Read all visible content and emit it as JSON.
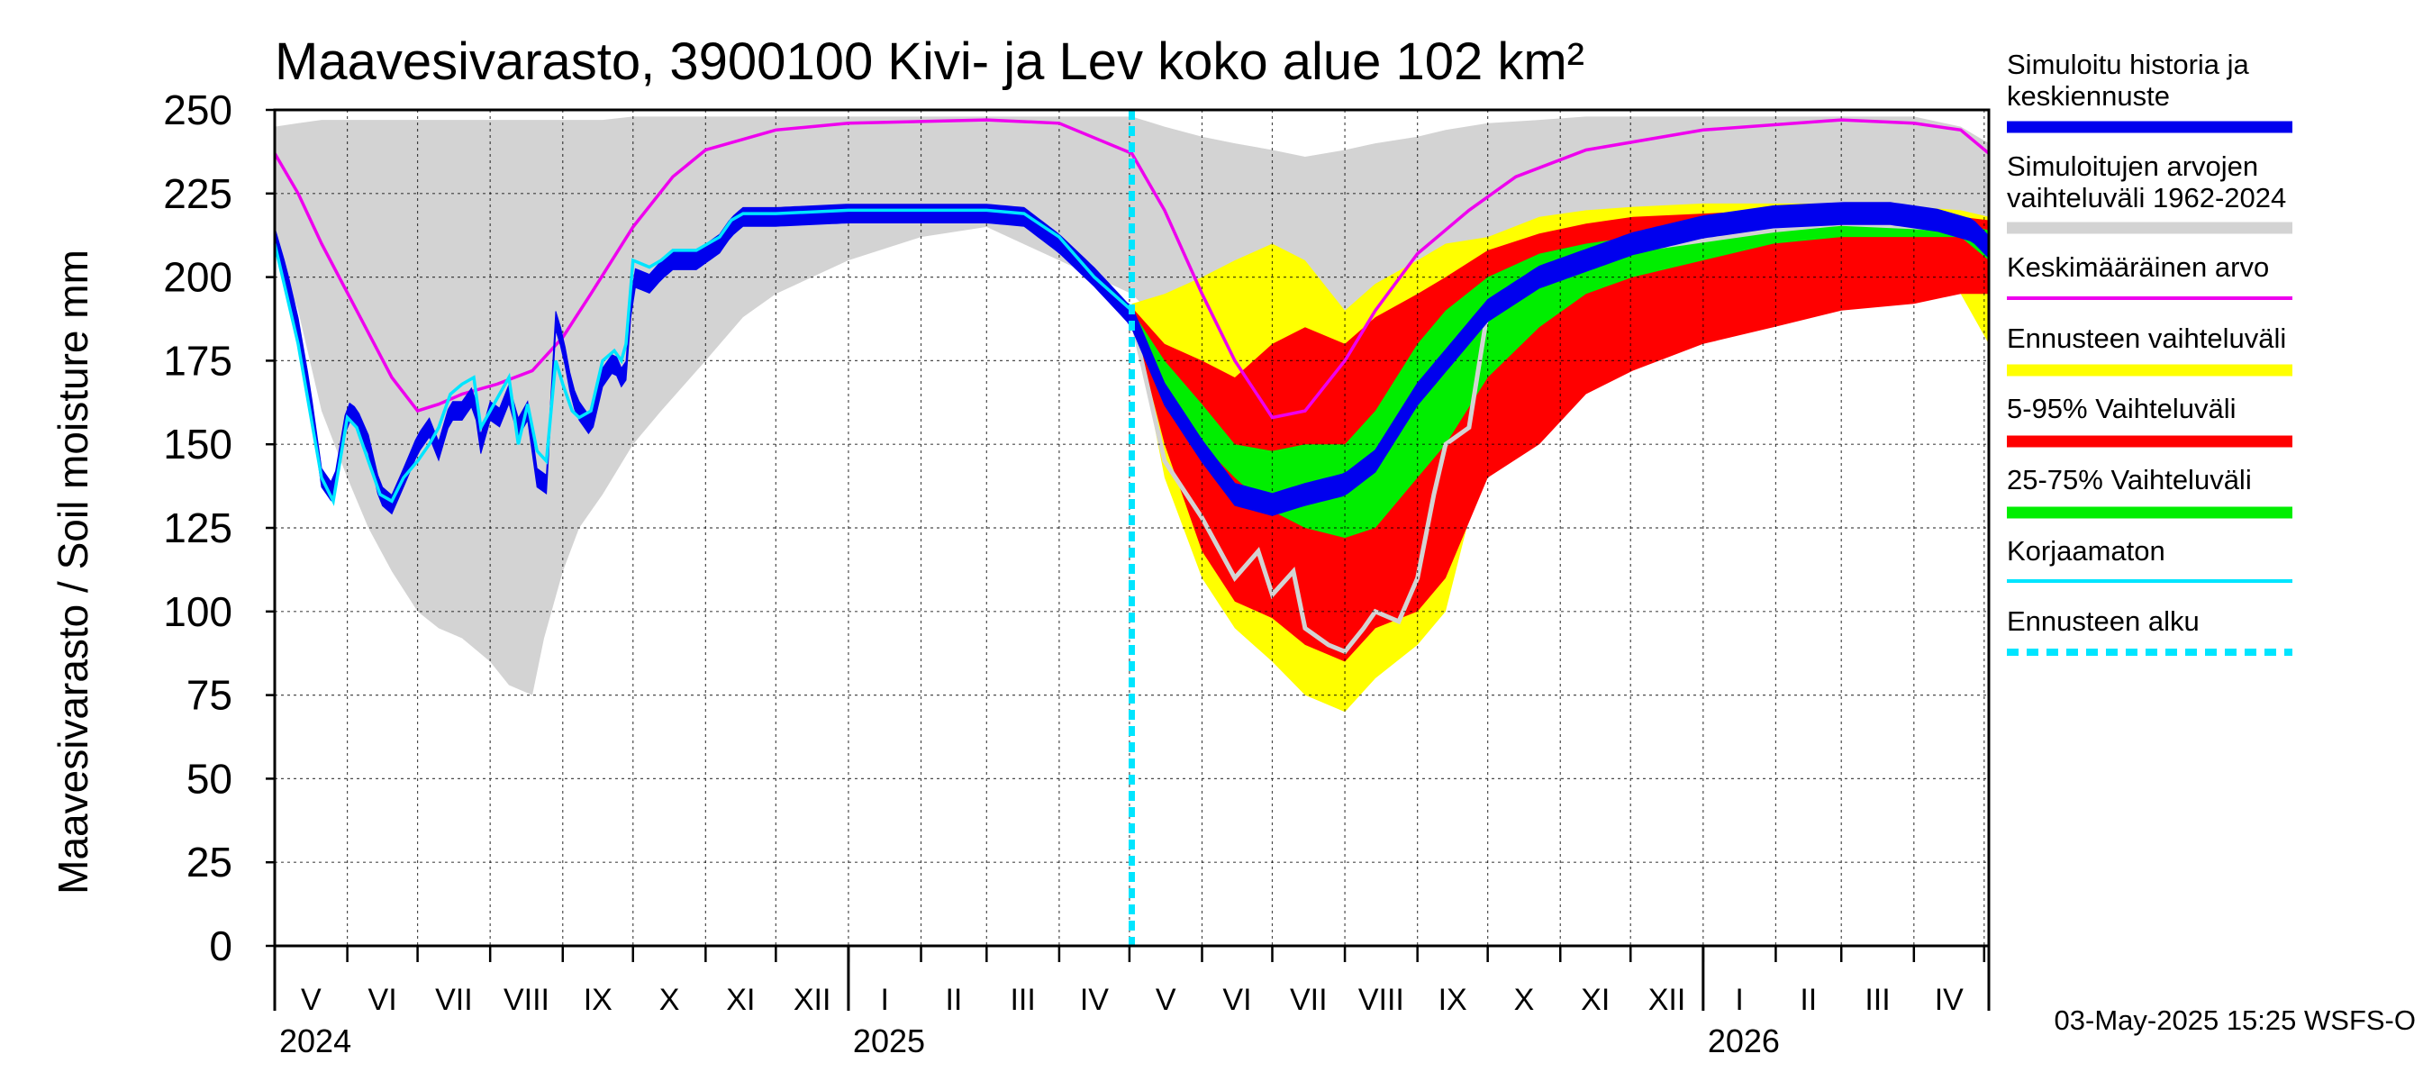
{
  "chart_data": {
    "type": "area",
    "title": "Maavesivarasto, 3900100 Kivi- ja Lev koko alue 102 km²",
    "ylabel": "Maavesivarasto / Soil moisture   mm",
    "xlabel": "",
    "ylim": [
      0,
      250
    ],
    "yticks": [
      0,
      25,
      50,
      75,
      100,
      125,
      150,
      175,
      200,
      225,
      250
    ],
    "xlim_days": [
      0,
      732
    ],
    "forecast_start_day": 366,
    "months": [
      {
        "label": "V",
        "day": 0
      },
      {
        "label": "VI",
        "day": 31
      },
      {
        "label": "VII",
        "day": 61
      },
      {
        "label": "VIII",
        "day": 92
      },
      {
        "label": "IX",
        "day": 123
      },
      {
        "label": "X",
        "day": 153
      },
      {
        "label": "XI",
        "day": 184
      },
      {
        "label": "XII",
        "day": 214
      },
      {
        "label": "I",
        "day": 245
      },
      {
        "label": "II",
        "day": 276
      },
      {
        "label": "III",
        "day": 304
      },
      {
        "label": "IV",
        "day": 335
      },
      {
        "label": "V",
        "day": 365
      },
      {
        "label": "VI",
        "day": 396
      },
      {
        "label": "VII",
        "day": 426
      },
      {
        "label": "VIII",
        "day": 457
      },
      {
        "label": "IX",
        "day": 488
      },
      {
        "label": "X",
        "day": 518
      },
      {
        "label": "XI",
        "day": 549
      },
      {
        "label": "XII",
        "day": 579
      },
      {
        "label": "I",
        "day": 610
      },
      {
        "label": "II",
        "day": 641
      },
      {
        "label": "III",
        "day": 669
      },
      {
        "label": "IV",
        "day": 700
      },
      {
        "label": "",
        "day": 730
      }
    ],
    "year_boundaries": [
      245,
      610
    ],
    "years": [
      {
        "label": "2024",
        "day": 0
      },
      {
        "label": "2025",
        "day": 245
      },
      {
        "label": "2026",
        "day": 610
      }
    ],
    "series": [
      {
        "name": "Simuloitujen arvojen vaihteluväli 1962-2024",
        "kind": "band",
        "x": [
          0,
          10,
          20,
          31,
          40,
          50,
          61,
          70,
          80,
          92,
          100,
          110,
          115,
          123,
          130,
          140,
          153,
          165,
          184,
          200,
          214,
          245,
          276,
          304,
          335,
          366,
          380,
          396,
          410,
          426,
          440,
          457,
          470,
          488,
          500,
          518,
          540,
          560,
          580,
          610,
          640,
          669,
          700,
          720,
          732
        ],
        "low": [
          210,
          190,
          160,
          140,
          125,
          112,
          100,
          95,
          92,
          85,
          78,
          75,
          92,
          112,
          125,
          135,
          150,
          160,
          175,
          188,
          195,
          205,
          212,
          215,
          205,
          195,
          185,
          175,
          165,
          160,
          150,
          162,
          175,
          190,
          200,
          205,
          210,
          212,
          213,
          214,
          215,
          213,
          210,
          200,
          190
        ],
        "high": [
          245,
          246,
          247,
          247,
          247,
          247,
          247,
          247,
          247,
          247,
          247,
          247,
          247,
          247,
          247,
          247,
          248,
          248,
          248,
          248,
          248,
          248,
          248,
          248,
          248,
          248,
          245,
          242,
          240,
          238,
          236,
          238,
          240,
          242,
          244,
          246,
          247,
          248,
          248,
          248,
          248,
          248,
          248,
          245,
          240
        ]
      },
      {
        "name": "Keskimääräinen arvo",
        "kind": "line",
        "color": "#ee00ee",
        "x": [
          0,
          10,
          20,
          35,
          50,
          61,
          70,
          80,
          95,
          110,
          123,
          135,
          153,
          170,
          184,
          214,
          245,
          304,
          335,
          366,
          380,
          396,
          410,
          426,
          440,
          457,
          470,
          488,
          510,
          530,
          560,
          610,
          669,
          700,
          720,
          732
        ],
        "y": [
          237,
          225,
          210,
          190,
          170,
          160,
          162,
          165,
          168,
          172,
          182,
          195,
          215,
          230,
          238,
          244,
          246,
          247,
          246,
          237,
          220,
          195,
          175,
          158,
          160,
          175,
          190,
          207,
          220,
          230,
          238,
          244,
          247,
          246,
          244,
          237
        ]
      },
      {
        "name": "Simuloitu historia ja keskiennuste",
        "kind": "line",
        "color": "#0000ee",
        "x": [
          0,
          5,
          10,
          15,
          20,
          25,
          31,
          35,
          40,
          45,
          50,
          55,
          61,
          66,
          70,
          75,
          80,
          85,
          88,
          92,
          96,
          100,
          104,
          108,
          112,
          116,
          120,
          123,
          127,
          130,
          135,
          140,
          145,
          148,
          150,
          153,
          160,
          165,
          170,
          180,
          190,
          195,
          200,
          214,
          245,
          276,
          304,
          320,
          335,
          350,
          366,
          380,
          396,
          410,
          426,
          440,
          457,
          470,
          488,
          500,
          518,
          540,
          560,
          580,
          610,
          640,
          669,
          690,
          710,
          725,
          732
        ],
        "y": [
          212,
          200,
          185,
          165,
          140,
          135,
          160,
          158,
          150,
          135,
          132,
          140,
          150,
          155,
          148,
          160,
          160,
          165,
          150,
          160,
          158,
          165,
          155,
          160,
          140,
          138,
          187,
          180,
          165,
          160,
          155,
          170,
          175,
          170,
          172,
          200,
          198,
          202,
          205,
          205,
          210,
          215,
          218,
          218,
          219,
          219,
          219,
          218,
          210,
          200,
          188,
          165,
          148,
          135,
          132,
          135,
          138,
          145,
          165,
          175,
          190,
          200,
          205,
          210,
          215,
          218,
          219,
          219,
          217,
          214,
          209
        ]
      },
      {
        "name": "Korjaamaton",
        "kind": "line",
        "color": "#00e5ff",
        "x": [
          0,
          5,
          10,
          15,
          20,
          25,
          31,
          35,
          40,
          45,
          50,
          55,
          61,
          66,
          70,
          75,
          80,
          85,
          88,
          92,
          96,
          100,
          104,
          108,
          112,
          116,
          120,
          123,
          127,
          130,
          135,
          140,
          145,
          148,
          150,
          153,
          160,
          165,
          170,
          180,
          190,
          195,
          200,
          214,
          245,
          276,
          304,
          320,
          335,
          350,
          366
        ],
        "y": [
          210,
          195,
          180,
          160,
          140,
          133,
          158,
          155,
          145,
          135,
          133,
          140,
          145,
          150,
          155,
          165,
          168,
          170,
          155,
          160,
          165,
          170,
          150,
          162,
          148,
          145,
          175,
          168,
          160,
          158,
          160,
          175,
          178,
          175,
          180,
          205,
          203,
          205,
          208,
          208,
          212,
          217,
          219,
          219,
          220,
          220,
          220,
          219,
          212,
          200,
          190
        ]
      },
      {
        "name": "Ennusteen vaihteluväli",
        "kind": "band",
        "color": "#ffff00",
        "x": [
          366,
          380,
          396,
          410,
          426,
          440,
          457,
          470,
          488,
          500,
          518,
          540,
          560,
          580,
          610,
          640,
          669,
          700,
          720,
          732
        ],
        "low": [
          190,
          140,
          110,
          95,
          85,
          75,
          70,
          80,
          90,
          100,
          150,
          160,
          170,
          180,
          185,
          190,
          192,
          195,
          195,
          180
        ],
        "high": [
          192,
          195,
          200,
          205,
          210,
          205,
          190,
          198,
          205,
          210,
          212,
          218,
          220,
          221,
          222,
          222,
          222,
          221,
          220,
          218
        ]
      },
      {
        "name": "5-95% Vaihteluväli",
        "kind": "band",
        "color": "#ff0000",
        "x": [
          366,
          380,
          396,
          410,
          426,
          440,
          457,
          470,
          488,
          500,
          518,
          540,
          560,
          580,
          610,
          640,
          669,
          700,
          720,
          732
        ],
        "low": [
          188,
          150,
          118,
          103,
          98,
          90,
          85,
          95,
          100,
          110,
          140,
          150,
          165,
          172,
          180,
          185,
          190,
          192,
          195,
          195
        ],
        "high": [
          191,
          180,
          175,
          170,
          180,
          185,
          180,
          188,
          195,
          200,
          208,
          213,
          216,
          218,
          219,
          220,
          220,
          219,
          218,
          217
        ]
      },
      {
        "name": "25-75% Vaihteluväli",
        "kind": "band",
        "color": "#00ee00",
        "x": [
          366,
          380,
          396,
          410,
          426,
          440,
          457,
          470,
          488,
          500,
          518,
          540,
          560,
          580,
          610,
          640,
          669,
          700,
          720,
          732
        ],
        "low": [
          189,
          165,
          150,
          140,
          130,
          125,
          122,
          125,
          140,
          150,
          170,
          185,
          195,
          200,
          205,
          210,
          212,
          212,
          212,
          205
        ],
        "high": [
          190,
          175,
          162,
          150,
          148,
          150,
          150,
          160,
          180,
          190,
          200,
          207,
          210,
          212,
          214,
          216,
          217,
          217,
          216,
          214
        ]
      },
      {
        "name": "Ennusteen alku",
        "kind": "vline",
        "color": "#00e5ff",
        "day": 366
      }
    ],
    "grey_trace": {
      "x": [
        366,
        380,
        396,
        410,
        420,
        426,
        435,
        440,
        450,
        457,
        465,
        470,
        480,
        488,
        495,
        500,
        510,
        518,
        530,
        540,
        560,
        580,
        610,
        640,
        669,
        700,
        720,
        732
      ],
      "y": [
        188,
        145,
        128,
        110,
        118,
        105,
        112,
        95,
        90,
        88,
        95,
        100,
        97,
        110,
        135,
        150,
        155,
        190,
        196,
        200,
        204,
        208,
        211,
        214,
        216,
        215,
        214,
        210
      ]
    }
  },
  "legend": [
    {
      "label": "Simuloitu historia ja keskiennuste",
      "color": "#0000ee",
      "style": "thick"
    },
    {
      "label": "Simuloitujen arvojen vaihteluväli 1962-2024",
      "color": "#d3d3d3",
      "style": "thick"
    },
    {
      "label": "Keskimääräinen arvo",
      "color": "#ee00ee",
      "style": "thin"
    },
    {
      "label": "Ennusteen vaihteluväli",
      "color": "#ffff00",
      "style": "thick"
    },
    {
      "label": "5-95% Vaihteluväli",
      "color": "#ff0000",
      "style": "thick"
    },
    {
      "label": "25-75% Vaihteluväli",
      "color": "#00ee00",
      "style": "thick"
    },
    {
      "label": "Korjaamaton",
      "color": "#00e5ff",
      "style": "thin"
    },
    {
      "label": "Ennusteen alku",
      "color": "#00e5ff",
      "style": "dashed"
    }
  ],
  "footer": "03-May-2025 15:25 WSFS-O"
}
